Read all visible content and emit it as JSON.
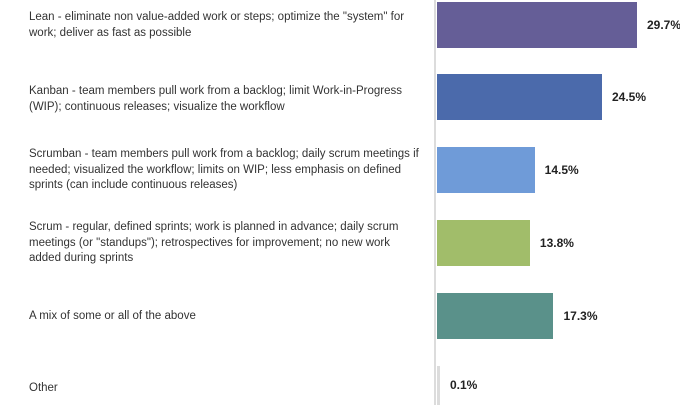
{
  "chart_data": {
    "type": "bar",
    "orientation": "horizontal",
    "categories": [
      "Lean - eliminate non value-added work or steps; optimize the \"system\" for work; deliver as fast as possible",
      "Kanban - team members pull work from a backlog; limit Work-in-Progress (WIP); continuous releases; visualize the workflow",
      "Scrumban - team members pull work from a backlog; daily scrum meetings if needed; visualized the workflow; limits on WIP; less emphasis on defined sprints (can include continuous releases)",
      "Scrum - regular, defined sprints; work is planned in advance; daily scrum meetings (or \"standups\"); retrospectives for improvement; no new work added during sprints",
      "A mix of some or all of the above",
      "Other"
    ],
    "values": [
      29.7,
      24.5,
      14.5,
      13.8,
      17.3,
      0.1
    ],
    "value_labels": [
      "29.7%",
      "24.5%",
      "14.5%",
      "13.8%",
      "17.3%",
      "0.1%"
    ],
    "colors": [
      "#655e97",
      "#4b6aab",
      "#6f9bd8",
      "#a1bd6a",
      "#5a918a",
      "#dcdcdc"
    ],
    "grid": false,
    "legend": "none"
  }
}
